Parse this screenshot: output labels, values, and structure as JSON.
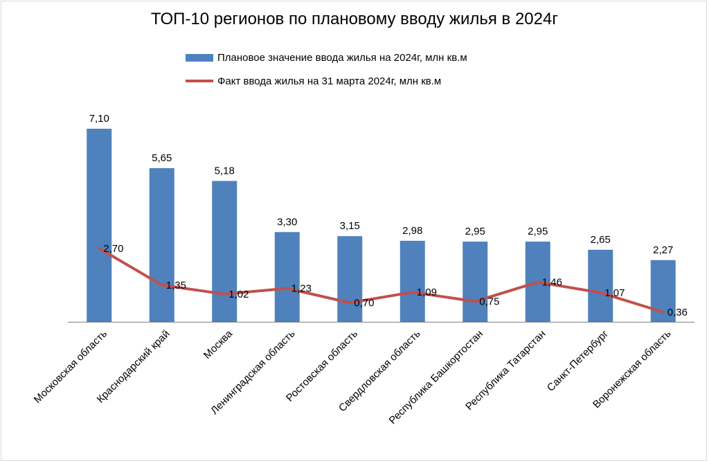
{
  "colors": {
    "bar": "#4f81bd",
    "line": "#c0504d",
    "axis": "#808080"
  },
  "chart_data": {
    "type": "bar",
    "title": "ТОП-10 регионов по плановому вводу жилья в 2024г",
    "categories": [
      "Московская область",
      "Краснодарский край",
      "Москва",
      "Ленинградская область",
      "Ростовская область",
      "Свердловская область",
      "Республика Башкортостан",
      "Республика Татарстан",
      "Санкт-Петербург",
      "Воронежская область"
    ],
    "series": [
      {
        "name": "Плановое значение ввода жилья на 2024г, млн кв.м",
        "type": "bar",
        "values": [
          7.1,
          5.65,
          5.18,
          3.3,
          3.15,
          2.98,
          2.95,
          2.95,
          2.65,
          2.27
        ],
        "labels": [
          "7,10",
          "5,65",
          "5,18",
          "3,30",
          "3,15",
          "2,98",
          "2,95",
          "2,95",
          "2,65",
          "2,27"
        ]
      },
      {
        "name": "Факт ввода жилья на 31 марта 2024г, млн кв.м",
        "type": "line",
        "values": [
          2.7,
          1.35,
          1.02,
          1.23,
          0.7,
          1.09,
          0.75,
          1.46,
          1.07,
          0.36
        ],
        "labels": [
          "2,70",
          "1,35",
          "1,02",
          "1,23",
          "0,70",
          "1,09",
          "0,75",
          "1,46",
          "1,07",
          "0,36"
        ]
      }
    ],
    "ylim": [
      0,
      7.1
    ],
    "grid": false,
    "legend": "top"
  }
}
